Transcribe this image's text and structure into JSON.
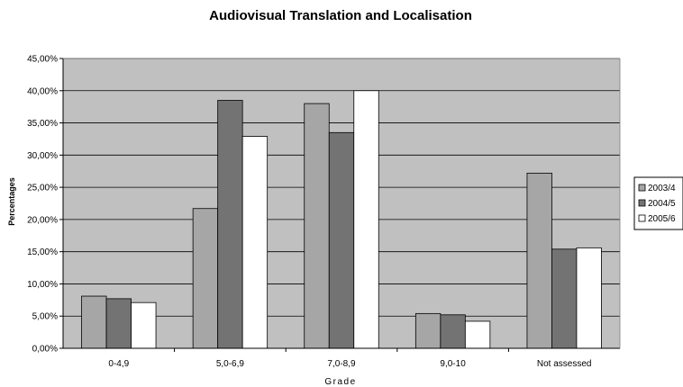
{
  "chart_data": {
    "type": "bar",
    "title": "Audiovisual Translation and Localisation",
    "xlabel": "Grade",
    "ylabel": "Percentages",
    "categories": [
      "0-4,9",
      "5,0-6,9",
      "7,0-8,9",
      "9,0-10",
      "Not assessed"
    ],
    "ylim": [
      0,
      45
    ],
    "yticks": [
      0,
      5,
      10,
      15,
      20,
      25,
      30,
      35,
      40,
      45
    ],
    "ytick_labels": [
      "0,00%",
      "5,00%",
      "10,00%",
      "15,00%",
      "20,00%",
      "25,00%",
      "30,00%",
      "35,00%",
      "40,00%",
      "45,00%"
    ],
    "grid": true,
    "legend_position": "right",
    "plot_background": "#c0c0c0",
    "series": [
      {
        "name": "2003/4",
        "color": "#a6a6a6",
        "values": [
          8.1,
          21.7,
          38.0,
          5.4,
          27.2
        ]
      },
      {
        "name": "2004/5",
        "color": "#737373",
        "values": [
          7.7,
          38.5,
          33.5,
          5.2,
          15.4
        ]
      },
      {
        "name": "2005/6",
        "color": "#ffffff",
        "values": [
          7.1,
          32.9,
          40.0,
          4.2,
          15.6
        ]
      }
    ]
  }
}
